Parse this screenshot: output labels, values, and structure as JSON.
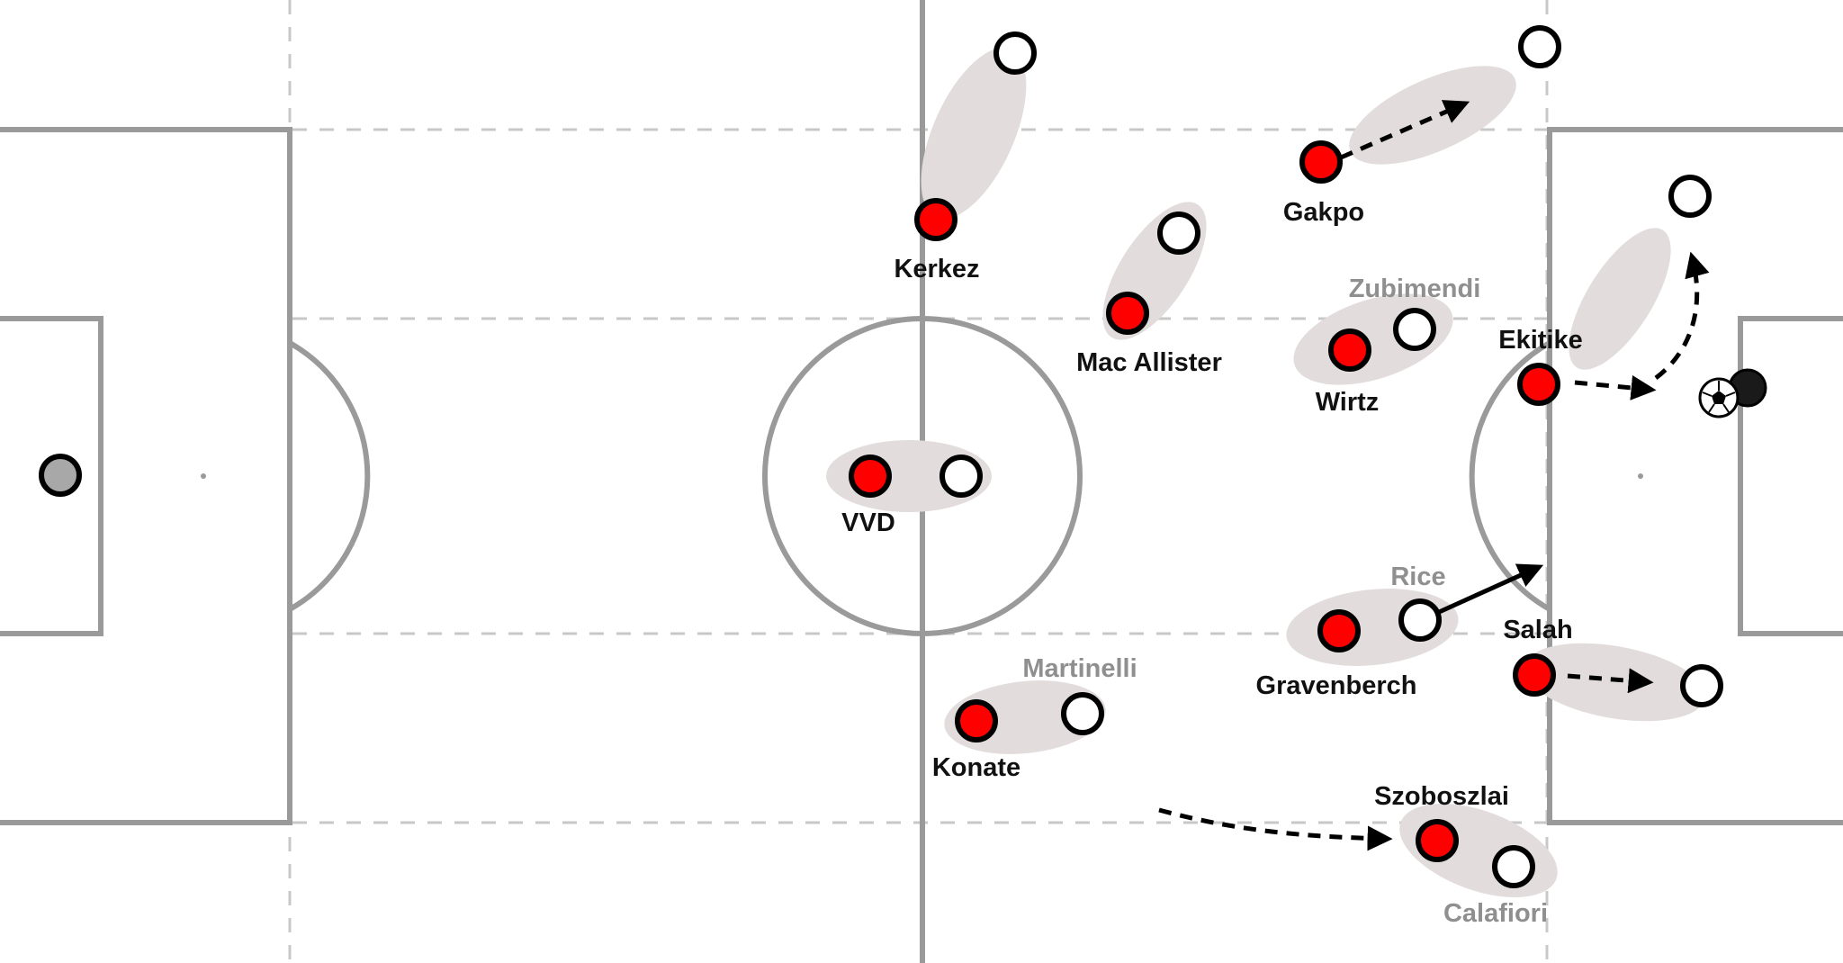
{
  "colors": {
    "pitch_line": "#9a9a9a",
    "pitch_dash": "#c8c8c8",
    "zone": "#e2dcdc",
    "home_player": "#ff0000",
    "away_player": "#ffffff",
    "goalkeeper": "#a8a8a8",
    "outline": "#000000",
    "label_dark": "#111111",
    "label_grey": "#8f8f8f"
  },
  "players": {
    "kerkez": "Kerkez",
    "mac_allister": "Mac Allister",
    "gakpo": "Gakpo",
    "wirtz": "Wirtz",
    "ekitike": "Ekitike",
    "vvd": "VVD",
    "gravenberch": "Gravenberch",
    "salah": "Salah",
    "konate": "Konate",
    "szoboszlai": "Szoboszlai"
  },
  "opponents": {
    "zubimendi": "Zubimendi",
    "rice": "Rice",
    "martinelli": "Martinelli",
    "calafiori": "Calafiori"
  },
  "ball_icon": "soccer-ball-icon"
}
